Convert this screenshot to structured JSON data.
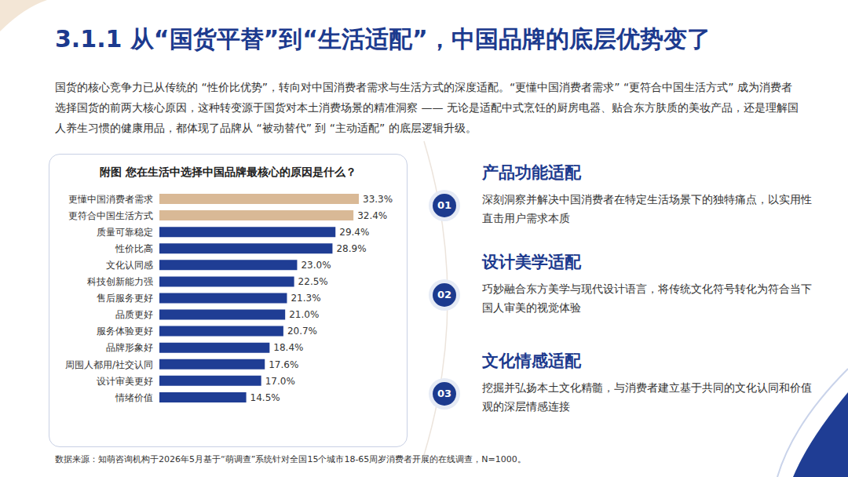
{
  "header": {
    "title": "3.1.1 从“国货平替”到“生活适配”，中国品牌的底层优势变了",
    "intro": "国货的核心竞争力已从传统的 “性价比优势”，转向对中国消费者需求与生活方式的深度适配。“更懂中国消费者需求” “更符合中国生活方式” 成为消费者选择国货的前两大核心原因，这种转变源于国货对本土消费场景的精准洞察 —— 无论是适配中式烹饪的厨房电器、贴合东方肤质的美妆产品，还是理解国人养生习惯的健康用品，都体现了品牌从 “被动替代” 到 “主动适配” 的底层逻辑升级。"
  },
  "chart_data": {
    "type": "bar",
    "orientation": "horizontal",
    "title": "附图  您在生活中选择中国品牌最核心的原因是什么？",
    "categories": [
      "更懂中国消费者需求",
      "更符合中国生活方式",
      "质量可靠稳定",
      "性价比高",
      "文化认同感",
      "科技创新能力强",
      "售后服务更好",
      "品质更好",
      "服务体验更好",
      "品牌形象好",
      "周围人都用/社交认同",
      "设计审美更好",
      "情绪价值"
    ],
    "values": [
      33.3,
      32.4,
      29.4,
      28.9,
      23.0,
      22.5,
      21.3,
      21.0,
      20.7,
      18.4,
      17.6,
      17.0,
      14.5
    ],
    "value_labels": [
      "33.3%",
      "32.4%",
      "29.4%",
      "28.9%",
      "23.0%",
      "22.5%",
      "21.3%",
      "21.0%",
      "20.7%",
      "18.4%",
      "17.6%",
      "17.0%",
      "14.5%"
    ],
    "colors": [
      "#d9b996",
      "#d9b996",
      "#1f3d94",
      "#1f3d94",
      "#1f3d94",
      "#1f3d94",
      "#1f3d94",
      "#1f3d94",
      "#1f3d94",
      "#1f3d94",
      "#1f3d94",
      "#1f3d94",
      "#1f3d94"
    ],
    "data_labels": true,
    "tick_labels": "y",
    "grid": false
  },
  "panels": [
    {
      "number": "01",
      "title": "产品功能适配",
      "text": "深刻洞察并解决中国消费者在特定生活场景下的独特痛点，以实用性直击用户需求本质"
    },
    {
      "number": "02",
      "title": "设计美学适配",
      "text": "巧妙融合东方美学与现代设计语言，将传统文化符号转化为符合当下国人审美的视觉体验"
    },
    {
      "number": "03",
      "title": "文化情感适配",
      "text": "挖掘并弘扬本土文化精髓，与消费者建立基于共同的文化认同和价值观的深层情感连接"
    }
  ],
  "source": "数据来源：知萌咨询机构于2026年5月基于“萌调查”系统针对全国15个城市18-65周岁消费者开展的在线调查，N=1000。"
}
